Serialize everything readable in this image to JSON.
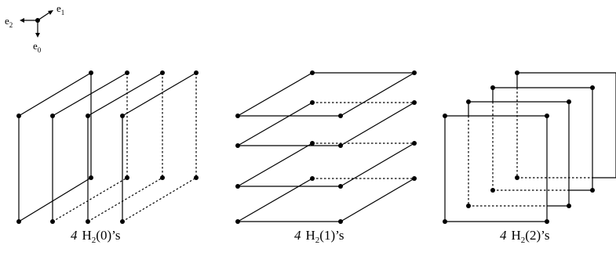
{
  "axes": {
    "e1": {
      "base": "e",
      "sub": "1"
    },
    "e2": {
      "base": "e",
      "sub": "2"
    },
    "e0": {
      "base": "e",
      "sub": "0"
    }
  },
  "panels": [
    {
      "count": "4",
      "letter": "H",
      "sub": "2",
      "arg": "(0)",
      "suffix": "’s"
    },
    {
      "count": "4",
      "letter": "H",
      "sub": "2",
      "arg": "(1)",
      "suffix": "’s"
    },
    {
      "count": "4",
      "letter": "H",
      "sub": "2",
      "arg": "(2)",
      "suffix": "’s"
    }
  ]
}
